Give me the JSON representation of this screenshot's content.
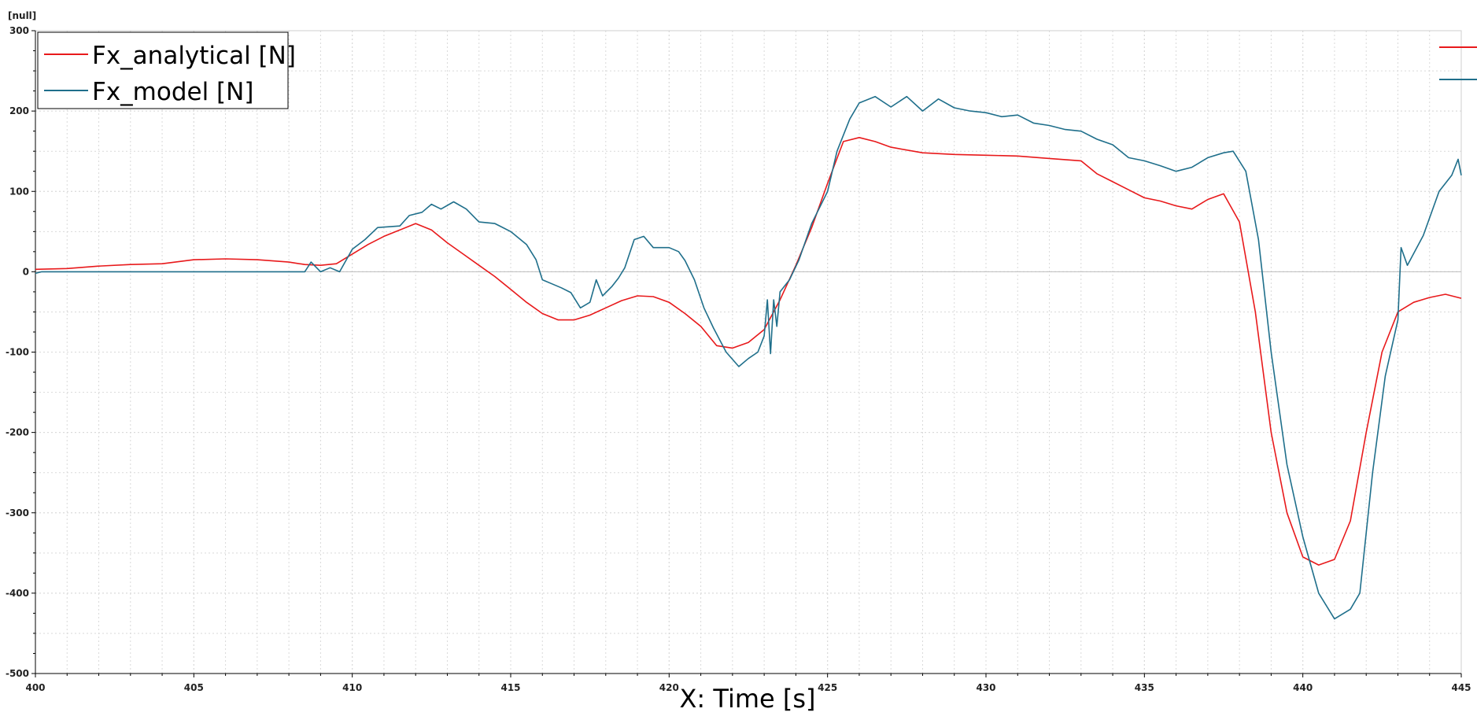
{
  "chart_data": {
    "type": "line",
    "xlabel": "X: Time [s]",
    "ylabel": "[null]",
    "xlim": [
      400,
      445
    ],
    "ylim": [
      -500,
      300
    ],
    "xticks": [
      400,
      405,
      410,
      415,
      420,
      425,
      430,
      435,
      440,
      445
    ],
    "yticks": [
      300,
      200,
      100,
      0,
      -100,
      -200,
      -300,
      -400,
      -500
    ],
    "grid": true,
    "legend_position": "top-left",
    "series": [
      {
        "name": "Fx_analytical [N]",
        "color": "#e8191b",
        "points": [
          [
            400,
            3
          ],
          [
            401,
            4
          ],
          [
            402,
            7
          ],
          [
            403,
            9
          ],
          [
            404,
            10
          ],
          [
            405,
            15
          ],
          [
            406,
            16
          ],
          [
            407,
            15
          ],
          [
            408,
            12
          ],
          [
            408.5,
            9
          ],
          [
            409,
            8
          ],
          [
            409.5,
            10
          ],
          [
            410,
            22
          ],
          [
            410.5,
            34
          ],
          [
            411,
            44
          ],
          [
            411.5,
            52
          ],
          [
            412,
            60
          ],
          [
            412.5,
            52
          ],
          [
            413,
            36
          ],
          [
            413.5,
            22
          ],
          [
            414,
            8
          ],
          [
            414.5,
            -6
          ],
          [
            415,
            -22
          ],
          [
            415.5,
            -38
          ],
          [
            416,
            -52
          ],
          [
            416.5,
            -60
          ],
          [
            417,
            -60
          ],
          [
            417.5,
            -54
          ],
          [
            418,
            -45
          ],
          [
            418.5,
            -36
          ],
          [
            419,
            -30
          ],
          [
            419.5,
            -31
          ],
          [
            420,
            -38
          ],
          [
            420.5,
            -52
          ],
          [
            421,
            -68
          ],
          [
            421.5,
            -92
          ],
          [
            422,
            -95
          ],
          [
            422.5,
            -88
          ],
          [
            423,
            -72
          ],
          [
            423.5,
            -35
          ],
          [
            424,
            8
          ],
          [
            424.5,
            55
          ],
          [
            425,
            110
          ],
          [
            425.5,
            162
          ],
          [
            426,
            167
          ],
          [
            426.5,
            162
          ],
          [
            427,
            155
          ],
          [
            428,
            148
          ],
          [
            429,
            146
          ],
          [
            430,
            145
          ],
          [
            431,
            144
          ],
          [
            432,
            141
          ],
          [
            433,
            138
          ],
          [
            433.5,
            122
          ],
          [
            434,
            112
          ],
          [
            434.5,
            102
          ],
          [
            435,
            92
          ],
          [
            435.5,
            88
          ],
          [
            436,
            82
          ],
          [
            436.5,
            78
          ],
          [
            437,
            90
          ],
          [
            437.5,
            97
          ],
          [
            438,
            62
          ],
          [
            438.5,
            -50
          ],
          [
            439,
            -200
          ],
          [
            439.5,
            -300
          ],
          [
            440,
            -355
          ],
          [
            440.5,
            -365
          ],
          [
            441,
            -358
          ],
          [
            441.5,
            -310
          ],
          [
            442,
            -200
          ],
          [
            442.5,
            -100
          ],
          [
            443,
            -50
          ],
          [
            443.5,
            -38
          ],
          [
            444,
            -32
          ],
          [
            444.5,
            -28
          ],
          [
            445,
            -33
          ]
        ]
      },
      {
        "name": "Fx_model [N]",
        "color": "#1f6f8b",
        "points": [
          [
            400,
            -2
          ],
          [
            400.2,
            0
          ],
          [
            401,
            0
          ],
          [
            405,
            0
          ],
          [
            408,
            0
          ],
          [
            408.5,
            0
          ],
          [
            408.7,
            12
          ],
          [
            409,
            0
          ],
          [
            409.3,
            5
          ],
          [
            409.6,
            0
          ],
          [
            409.8,
            14
          ],
          [
            410,
            28
          ],
          [
            410.4,
            40
          ],
          [
            410.8,
            55
          ],
          [
            411.5,
            57
          ],
          [
            411.8,
            70
          ],
          [
            412.2,
            74
          ],
          [
            412.5,
            84
          ],
          [
            412.8,
            78
          ],
          [
            413.2,
            87
          ],
          [
            413.6,
            78
          ],
          [
            414,
            62
          ],
          [
            414.5,
            60
          ],
          [
            415,
            50
          ],
          [
            415.5,
            34
          ],
          [
            415.8,
            15
          ],
          [
            416,
            -10
          ],
          [
            416.3,
            -15
          ],
          [
            416.6,
            -20
          ],
          [
            416.9,
            -26
          ],
          [
            417.2,
            -45
          ],
          [
            417.5,
            -38
          ],
          [
            417.7,
            -10
          ],
          [
            417.9,
            -30
          ],
          [
            418.2,
            -18
          ],
          [
            418.4,
            -8
          ],
          [
            418.6,
            5
          ],
          [
            418.9,
            40
          ],
          [
            419.2,
            44
          ],
          [
            419.5,
            30
          ],
          [
            420,
            30
          ],
          [
            420.3,
            25
          ],
          [
            420.5,
            14
          ],
          [
            420.8,
            -10
          ],
          [
            421.1,
            -45
          ],
          [
            421.4,
            -70
          ],
          [
            421.8,
            -100
          ],
          [
            422.2,
            -118
          ],
          [
            422.5,
            -108
          ],
          [
            422.8,
            -100
          ],
          [
            423.0,
            -80
          ],
          [
            423.1,
            -35
          ],
          [
            423.2,
            -102
          ],
          [
            423.3,
            -35
          ],
          [
            423.4,
            -68
          ],
          [
            423.5,
            -25
          ],
          [
            423.8,
            -10
          ],
          [
            424.1,
            15
          ],
          [
            424.5,
            60
          ],
          [
            425,
            100
          ],
          [
            425.3,
            150
          ],
          [
            425.7,
            190
          ],
          [
            426,
            210
          ],
          [
            426.5,
            218
          ],
          [
            427,
            205
          ],
          [
            427.5,
            218
          ],
          [
            428,
            200
          ],
          [
            428.5,
            215
          ],
          [
            429,
            204
          ],
          [
            429.5,
            200
          ],
          [
            430,
            198
          ],
          [
            430.5,
            193
          ],
          [
            431,
            195
          ],
          [
            431.5,
            185
          ],
          [
            432,
            182
          ],
          [
            432.5,
            177
          ],
          [
            433,
            175
          ],
          [
            433.5,
            165
          ],
          [
            434,
            158
          ],
          [
            434.5,
            142
          ],
          [
            435,
            138
          ],
          [
            435.5,
            132
          ],
          [
            436,
            125
          ],
          [
            436.5,
            130
          ],
          [
            437,
            142
          ],
          [
            437.5,
            148
          ],
          [
            437.8,
            150
          ],
          [
            438.2,
            125
          ],
          [
            438.6,
            40
          ],
          [
            439,
            -100
          ],
          [
            439.5,
            -240
          ],
          [
            440,
            -330
          ],
          [
            440.5,
            -400
          ],
          [
            441,
            -432
          ],
          [
            441.5,
            -420
          ],
          [
            441.8,
            -400
          ],
          [
            442.2,
            -250
          ],
          [
            442.6,
            -130
          ],
          [
            443,
            -60
          ],
          [
            443.1,
            30
          ],
          [
            443.3,
            8
          ],
          [
            443.8,
            45
          ],
          [
            444.3,
            100
          ],
          [
            444.7,
            120
          ],
          [
            444.9,
            140
          ],
          [
            445,
            120
          ]
        ]
      }
    ]
  }
}
